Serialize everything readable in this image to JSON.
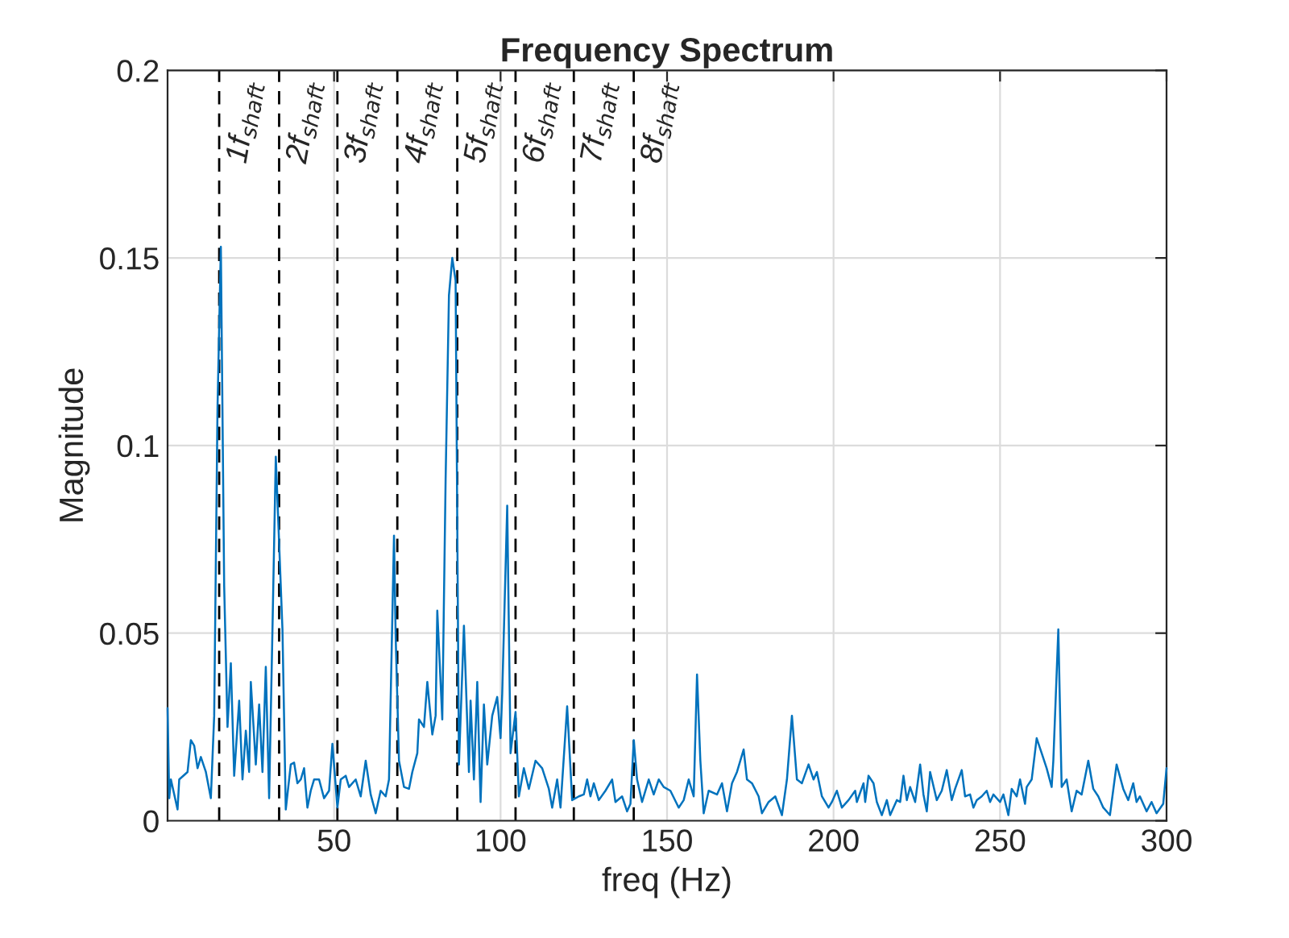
{
  "chart_data": {
    "type": "line",
    "title": "Frequency Spectrum",
    "xlabel": "freq (Hz)",
    "ylabel": "Magnitude",
    "xlim": [
      0,
      300
    ],
    "xticks": [
      50,
      100,
      150,
      200,
      250,
      300
    ],
    "ylim": [
      0,
      0.2
    ],
    "yticks": [
      0,
      0.05,
      0.1,
      0.15,
      0.2
    ],
    "grid": true,
    "line_style": "solid",
    "marker": "none",
    "series": [
      {
        "color": "#0072bd",
        "x": [
          0,
          0.5,
          1,
          3,
          3.5,
          6,
          7,
          8,
          9,
          10,
          11.5,
          13,
          14,
          15,
          16,
          17,
          18,
          19,
          20,
          21.5,
          22.5,
          23.5,
          24.5,
          25,
          26.5,
          27.5,
          28.5,
          29.5,
          30.5,
          31.5,
          32.5,
          34.5,
          35.5,
          37,
          38,
          39,
          40,
          41,
          42,
          43,
          44,
          45.5,
          47,
          48.5,
          49.5,
          51,
          52,
          53.5,
          54.5,
          56.5,
          58,
          59.5,
          61,
          62.5,
          64,
          65.5,
          66.5,
          68,
          68.5,
          69.5,
          71,
          72.5,
          73.5,
          75,
          75.5,
          77,
          78,
          79.5,
          80.5,
          81,
          82.5,
          83.5,
          84.5,
          85.5,
          86.5,
          87.5,
          89,
          90.5,
          91,
          92,
          93,
          94,
          95,
          96,
          97.5,
          99,
          100,
          100.5,
          102,
          103,
          104.5,
          105.5,
          107,
          108.5,
          110.5,
          112.5,
          114.5,
          115.5,
          117,
          118,
          120,
          121.5,
          123.5,
          125,
          126,
          127,
          128,
          129.5,
          131.5,
          133.5,
          134.5,
          136.5,
          138,
          139,
          140,
          141,
          142.5,
          144.5,
          146,
          147.5,
          149,
          151,
          153.5,
          155,
          156.5,
          158,
          159,
          160,
          161,
          162.5,
          165,
          166.5,
          168,
          169.5,
          171,
          173,
          174,
          175.5,
          177.5,
          178.5,
          180.5,
          182.5,
          184.5,
          186,
          187.5,
          189,
          190.5,
          192.5,
          194,
          195,
          196.5,
          198.5,
          199.5,
          201,
          202.5,
          204.5,
          206.5,
          207,
          209,
          209.5,
          210.5,
          212,
          213,
          214.5,
          216,
          217,
          219,
          220,
          221,
          222,
          223,
          224.5,
          226,
          227,
          228,
          229,
          231,
          232.5,
          234,
          235.5,
          236.5,
          238.5,
          239.5,
          241,
          242,
          243,
          244.5,
          246,
          247,
          248,
          250,
          251,
          252.5,
          253.5,
          255,
          256,
          257.5,
          258,
          259.5,
          261,
          262.5,
          264,
          265.5,
          266,
          267.5,
          268.5,
          270,
          271.5,
          273,
          274.5,
          276.5,
          278,
          279.5,
          281,
          283,
          285,
          287,
          288.5,
          290,
          291,
          292,
          294,
          295.5,
          297,
          299,
          300
        ],
        "values": [
          0.03,
          0.006,
          0.011,
          0.003,
          0.011,
          0.013,
          0.0215,
          0.02,
          0.014,
          0.017,
          0.013,
          0.006,
          0.028,
          0.11,
          0.153,
          0.0625,
          0.025,
          0.042,
          0.012,
          0.032,
          0.011,
          0.024,
          0.013,
          0.037,
          0.015,
          0.031,
          0.013,
          0.041,
          0.006,
          0.051,
          0.097,
          0.051,
          0.003,
          0.015,
          0.0155,
          0.01,
          0.011,
          0.014,
          0.0035,
          0.008,
          0.011,
          0.011,
          0.006,
          0.008,
          0.0205,
          0.0035,
          0.011,
          0.012,
          0.009,
          0.011,
          0.0065,
          0.016,
          0.007,
          0.002,
          0.008,
          0.0065,
          0.011,
          0.076,
          0.049,
          0.016,
          0.009,
          0.0085,
          0.013,
          0.018,
          0.027,
          0.025,
          0.037,
          0.023,
          0.028,
          0.056,
          0.027,
          0.091,
          0.14,
          0.15,
          0.144,
          0.015,
          0.052,
          0.013,
          0.032,
          0.011,
          0.037,
          0.005,
          0.031,
          0.015,
          0.028,
          0.033,
          0.022,
          0.034,
          0.084,
          0.018,
          0.029,
          0.0065,
          0.014,
          0.0085,
          0.016,
          0.014,
          0.0085,
          0.0035,
          0.011,
          0.0035,
          0.0305,
          0.0055,
          0.0065,
          0.007,
          0.011,
          0.0065,
          0.01,
          0.0055,
          0.008,
          0.011,
          0.005,
          0.0065,
          0.0025,
          0.0045,
          0.0215,
          0.011,
          0.005,
          0.011,
          0.007,
          0.011,
          0.009,
          0.008,
          0.0035,
          0.0055,
          0.011,
          0.0065,
          0.039,
          0.016,
          0.002,
          0.008,
          0.007,
          0.01,
          0.0025,
          0.01,
          0.013,
          0.019,
          0.011,
          0.01,
          0.0065,
          0.002,
          0.005,
          0.0065,
          0.0015,
          0.011,
          0.028,
          0.011,
          0.01,
          0.015,
          0.011,
          0.013,
          0.0065,
          0.0035,
          0.005,
          0.008,
          0.0035,
          0.0055,
          0.008,
          0.005,
          0.01,
          0.005,
          0.012,
          0.01,
          0.005,
          0.0015,
          0.0055,
          0.0015,
          0.0055,
          0.005,
          0.012,
          0.0055,
          0.009,
          0.005,
          0.015,
          0.007,
          0.0025,
          0.013,
          0.0055,
          0.008,
          0.0135,
          0.0055,
          0.0085,
          0.0135,
          0.0065,
          0.007,
          0.0035,
          0.0055,
          0.0065,
          0.008,
          0.005,
          0.007,
          0.005,
          0.007,
          0.0015,
          0.0085,
          0.0065,
          0.011,
          0.0045,
          0.009,
          0.011,
          0.022,
          0.018,
          0.014,
          0.009,
          0.016,
          0.051,
          0.009,
          0.011,
          0.0025,
          0.008,
          0.007,
          0.016,
          0.0085,
          0.0065,
          0.0035,
          0.0015,
          0.015,
          0.0085,
          0.0055,
          0.01,
          0.005,
          0.0065,
          0.0025,
          0.005,
          0.002,
          0.0045,
          0.014
        ]
      }
    ],
    "ref_lines": [
      {
        "axis": "x",
        "value": 15.5,
        "label": "1f$_{shaft}$",
        "color": "#000000",
        "line_style": "dashed"
      },
      {
        "axis": "x",
        "value": 33.5,
        "label": "2f$_{shaft}$",
        "color": "#000000",
        "line_style": "dashed"
      },
      {
        "axis": "x",
        "value": 51,
        "label": "3f$_{shaft}$",
        "color": "#000000",
        "line_style": "dashed"
      },
      {
        "axis": "x",
        "value": 69,
        "label": "4f$_{shaft}$",
        "color": "#000000",
        "line_style": "dashed"
      },
      {
        "axis": "x",
        "value": 87,
        "label": "5f$_{shaft}$",
        "color": "#000000",
        "line_style": "dashed"
      },
      {
        "axis": "x",
        "value": 104.5,
        "label": "6f$_{shaft}$",
        "color": "#000000",
        "line_style": "dashed"
      },
      {
        "axis": "x",
        "value": 122,
        "label": "7f$_{shaft}$",
        "color": "#000000",
        "line_style": "dashed"
      },
      {
        "axis": "x",
        "value": 140,
        "label": "8f$_{shaft}$",
        "color": "#000000",
        "line_style": "dashed"
      }
    ]
  }
}
